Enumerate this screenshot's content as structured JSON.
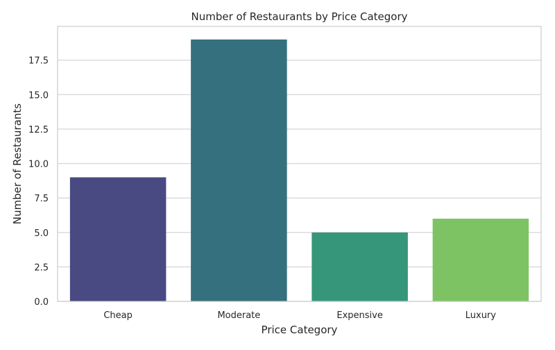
{
  "chart_data": {
    "type": "bar",
    "title": "Number of Restaurants by Price Category",
    "xlabel": "Price Category",
    "ylabel": "Number of Restaurants",
    "categories": [
      "Cheap",
      "Moderate",
      "Expensive",
      "Luxury"
    ],
    "values": [
      9,
      19,
      5,
      6
    ],
    "colors": [
      "#4a4a82",
      "#35707f",
      "#35967a",
      "#7dc363"
    ],
    "ylim": [
      0,
      19.95
    ],
    "yticks": [
      0.0,
      2.5,
      5.0,
      7.5,
      10.0,
      12.5,
      15.0,
      17.5
    ],
    "ytick_labels": [
      "0.0",
      "2.5",
      "5.0",
      "7.5",
      "10.0",
      "12.5",
      "15.0",
      "17.5"
    ],
    "grid": true,
    "legend": "none"
  }
}
